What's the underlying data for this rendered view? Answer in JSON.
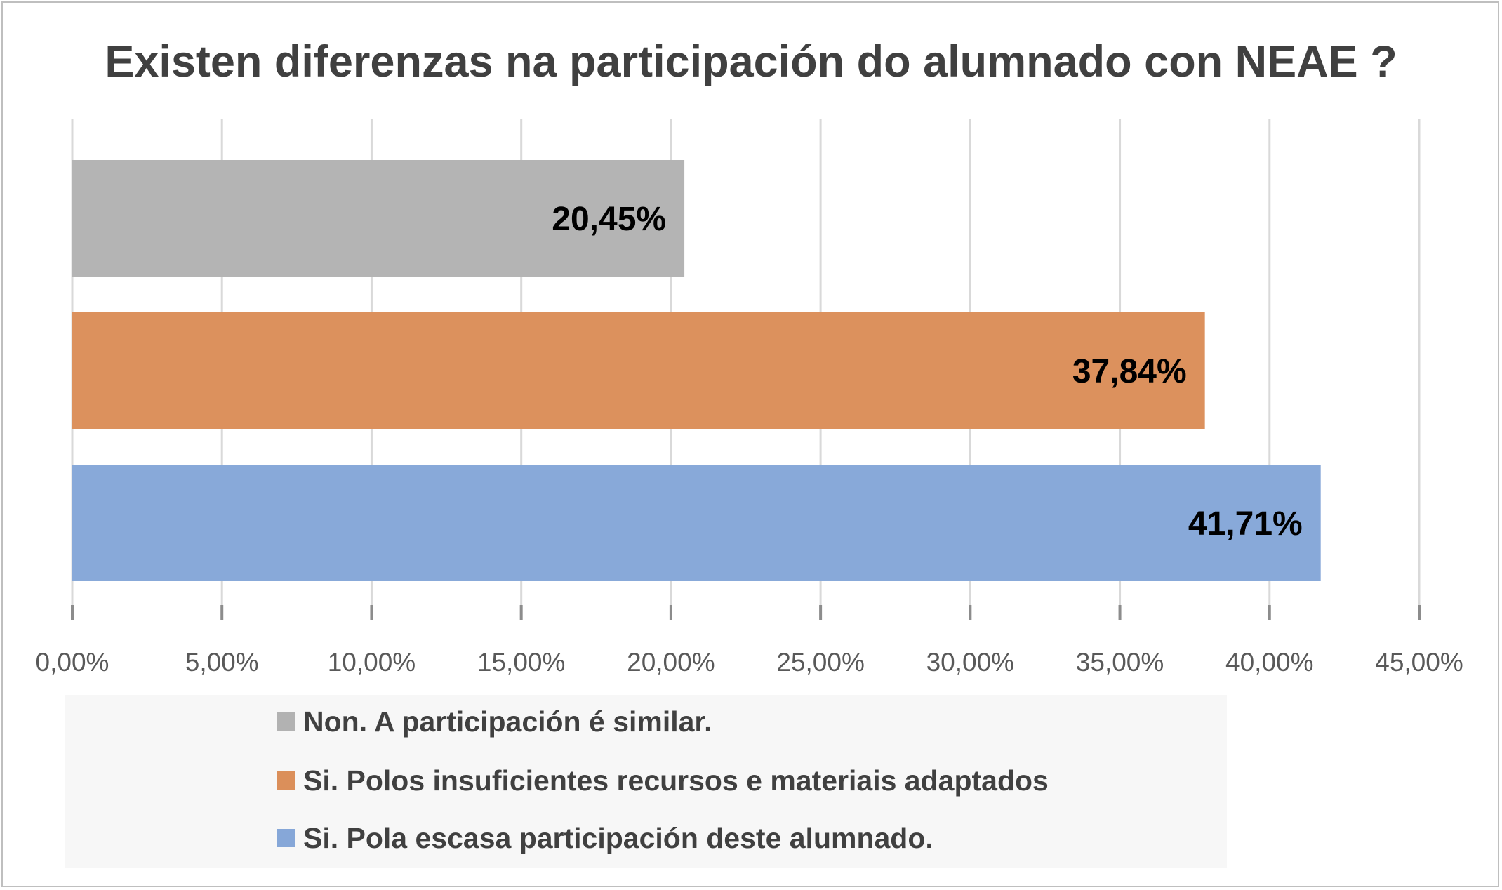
{
  "chart_data": {
    "type": "bar",
    "orientation": "horizontal",
    "title": "Existen diferenzas na participación do alumnado con NEAE ?",
    "xlabel": "",
    "ylabel": "",
    "xlim": [
      0,
      45
    ],
    "ticks": [
      0,
      5,
      10,
      15,
      20,
      25,
      30,
      35,
      40,
      45
    ],
    "tick_labels": [
      "0,00%",
      "5,00%",
      "10,00%",
      "15,00%",
      "20,00%",
      "25,00%",
      "30,00%",
      "35,00%",
      "40,00%",
      "45,00%"
    ],
    "grid": true,
    "legend_position": "bottom",
    "series": [
      {
        "name": "Non. A participación é similar.",
        "value": 20.45,
        "label": "20,45%",
        "color": "#b2b2b2"
      },
      {
        "name": "Si. Polos insuficientes recursos e materiais adaptados",
        "value": 37.84,
        "label": "37,84%",
        "color": "#db8f5a"
      },
      {
        "name": "Si. Pola escasa participación deste alumnado.",
        "value": 41.71,
        "label": "41,71%",
        "color": "#86a7d8"
      }
    ]
  }
}
